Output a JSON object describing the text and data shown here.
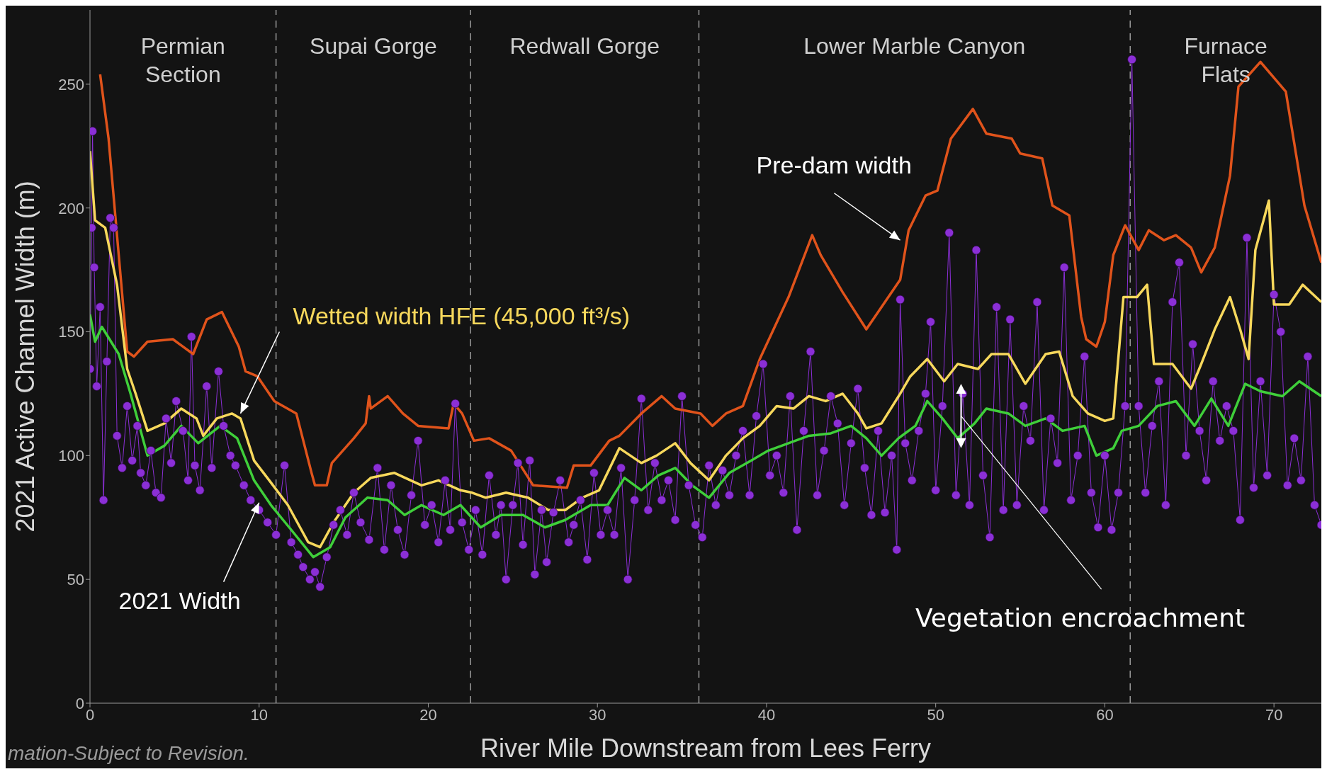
{
  "chart_data": {
    "type": "line",
    "xlabel": "River Mile Downstream from Lees Ferry",
    "ylabel": "2021 Active Channel Width (m)",
    "xlim": [
      0,
      72.8
    ],
    "ylim": [
      0,
      280
    ],
    "xticks": [
      0,
      10,
      20,
      30,
      40,
      50,
      60,
      70
    ],
    "yticks": [
      0,
      50,
      100,
      150,
      200,
      250
    ],
    "grid": false,
    "legend": false,
    "series": [
      {
        "type": "line",
        "marker": "circle",
        "color": "#8b2fd6",
        "x": [
          0,
          0.1,
          0.15,
          0.25,
          0.4,
          0.6,
          0.8,
          1.0,
          1.2,
          1.4,
          1.6,
          1.9,
          2.2,
          2.5,
          2.8,
          3.0,
          3.3,
          3.6,
          3.9,
          4.2,
          4.5,
          4.8,
          5.1,
          5.5,
          5.8,
          6.0,
          6.2,
          6.5,
          6.9,
          7.2,
          7.6,
          7.9,
          8.3,
          8.6,
          9.1,
          9.5,
          10.0,
          10.5,
          11.0,
          11.5,
          11.9,
          12.3,
          12.6,
          13.0,
          13.3,
          13.6,
          14.0,
          14.4,
          14.8,
          15.2,
          15.6,
          16.0,
          16.5,
          17.0,
          17.4,
          17.8,
          18.2,
          18.6,
          19.0,
          19.4,
          19.8,
          20.2,
          20.6,
          21.0,
          21.3,
          21.6,
          22.0,
          22.4,
          22.8,
          23.2,
          23.6,
          24.0,
          24.3,
          24.6,
          25.0,
          25.3,
          25.6,
          26.0,
          26.3,
          26.7,
          27.0,
          27.4,
          27.8,
          28.3,
          28.6,
          29.0,
          29.4,
          29.8,
          30.2,
          30.6,
          31.0,
          31.4,
          31.8,
          32.2,
          32.6,
          33.0,
          33.4,
          33.8,
          34.2,
          34.6,
          35.0,
          35.4,
          35.8,
          36.2,
          36.6,
          37.0,
          37.4,
          37.8,
          38.2,
          38.6,
          39.0,
          39.4,
          39.8,
          40.2,
          40.6,
          41.0,
          41.4,
          41.8,
          42.2,
          42.6,
          43.0,
          43.4,
          43.8,
          44.2,
          44.6,
          45.0,
          45.4,
          45.8,
          46.2,
          46.6,
          47.0,
          47.4,
          47.7,
          47.9,
          48.2,
          48.6,
          49.0,
          49.4,
          49.7,
          50.0,
          50.4,
          50.8,
          51.2,
          51.6,
          52.0,
          52.4,
          52.8,
          53.2,
          53.6,
          54.0,
          54.4,
          54.8,
          55.2,
          55.6,
          56.0,
          56.4,
          56.8,
          57.2,
          57.6,
          58.0,
          58.4,
          58.8,
          59.2,
          59.6,
          60.0,
          60.4,
          60.8,
          61.2,
          61.6,
          62.0,
          62.4,
          62.8,
          63.2,
          63.6,
          64.0,
          64.4,
          64.8,
          65.2,
          65.6,
          66.0,
          66.4,
          66.8,
          67.2,
          67.6,
          68.0,
          68.4,
          68.8,
          69.2,
          69.6,
          70.0,
          70.4,
          70.8,
          71.2,
          71.6,
          72.0,
          72.4,
          72.8
        ],
        "values": [
          135,
          192,
          231,
          176,
          128,
          160,
          82,
          138,
          196,
          192,
          108,
          95,
          120,
          98,
          112,
          93,
          88,
          102,
          85,
          83,
          115,
          97,
          122,
          110,
          90,
          148,
          96,
          86,
          128,
          95,
          134,
          112,
          100,
          96,
          88,
          82,
          78,
          73,
          68,
          96,
          65,
          60,
          55,
          50,
          53,
          47,
          59,
          72,
          78,
          68,
          85,
          73,
          66,
          95,
          62,
          88,
          70,
          60,
          84,
          106,
          72,
          80,
          65,
          90,
          70,
          121,
          73,
          62,
          78,
          60,
          92,
          68,
          80,
          50,
          80,
          97,
          64,
          98,
          52,
          78,
          57,
          77,
          90,
          65,
          72,
          82,
          58,
          93,
          68,
          78,
          68,
          95,
          50,
          82,
          123,
          78,
          97,
          82,
          90,
          74,
          124,
          88,
          72,
          67,
          96,
          80,
          94,
          84,
          100,
          110,
          84,
          116,
          137,
          92,
          100,
          85,
          124,
          70,
          110,
          142,
          84,
          102,
          124,
          113,
          80,
          105,
          127,
          95,
          76,
          110,
          77,
          100,
          62,
          163,
          105,
          90,
          110,
          125,
          154,
          86,
          120,
          190,
          84,
          125,
          80,
          183,
          92,
          67,
          160,
          78,
          155,
          80,
          120,
          106,
          162,
          78,
          115,
          97,
          176,
          82,
          100,
          140,
          85,
          71,
          100,
          70,
          85,
          120,
          260,
          120,
          85,
          112,
          130,
          80,
          162,
          178,
          100,
          145,
          110,
          90,
          130,
          106,
          120,
          110,
          74,
          188,
          87,
          130,
          92,
          165,
          150,
          88,
          107,
          90,
          140,
          80,
          72
        ]
      },
      {
        "name": "Pre-dam width",
        "color": "#e0531b",
        "x": [
          0.6,
          1.1,
          1.7,
          2.2,
          2.6,
          3.4,
          4.9,
          6.1,
          6.9,
          7.8,
          8.8,
          9.2,
          9.9,
          10.9,
          12.2,
          13.1,
          13.3,
          14.0,
          14.3,
          15.6,
          16.3,
          16.5,
          16.6,
          17.6,
          18.5,
          19.4,
          21.2,
          21.5,
          22.0,
          22.7,
          23.6,
          24.9,
          26.2,
          28.2,
          28.6,
          29.6,
          30.7,
          31.3,
          32.6,
          33.8,
          34.6,
          36.1,
          36.8,
          37.6,
          38.6,
          39.6,
          41.3,
          42.7,
          43.2,
          44.5,
          45.9,
          46.8,
          47.9,
          48.4,
          49.4,
          50.1,
          50.9,
          52.2,
          53.0,
          54.5,
          55.0,
          56.3,
          56.9,
          57.9,
          58.6,
          58.9,
          59.5,
          60.0,
          60.5,
          61.2,
          62.0,
          62.6,
          63.5,
          64.2,
          65.1,
          65.7,
          66.5,
          67.4,
          67.9,
          69.2,
          70.7,
          71.8,
          72.8
        ],
        "values": [
          254,
          228,
          181,
          142,
          140,
          146,
          147,
          141,
          155,
          158,
          144,
          134,
          132,
          122,
          117,
          93,
          88,
          88,
          97,
          107,
          113,
          124,
          119,
          124,
          117,
          112,
          111,
          121,
          117,
          106,
          107,
          102,
          88,
          87,
          96,
          96,
          106,
          108,
          117,
          124,
          119,
          117,
          112,
          117,
          120,
          139,
          164,
          189,
          181,
          166,
          151,
          160,
          171,
          191,
          205,
          207,
          228,
          240,
          230,
          228,
          222,
          220,
          201,
          197,
          156,
          147,
          144,
          154,
          181,
          193,
          183,
          191,
          187,
          189,
          184,
          174,
          184,
          213,
          249,
          259,
          247,
          201,
          178
        ]
      },
      {
        "name": "Wetted width HFE (45,000 ft³/s)",
        "color": "#f7d85c",
        "x": [
          0,
          0.3,
          0.9,
          1.6,
          2.2,
          2.7,
          3.4,
          4.4,
          5.4,
          6.3,
          6.7,
          7.5,
          8.4,
          8.9,
          9.7,
          10.6,
          11.7,
          12.9,
          13.6,
          14.4,
          15.6,
          16.6,
          18.0,
          19.6,
          20.6,
          21.9,
          22.6,
          23.4,
          24.6,
          25.9,
          27.1,
          28.1,
          29.1,
          30.1,
          31.3,
          32.6,
          33.5,
          34.6,
          35.5,
          36.6,
          37.6,
          38.6,
          39.6,
          40.6,
          41.6,
          42.5,
          43.5,
          44.5,
          45.4,
          45.9,
          46.8,
          47.9,
          48.5,
          49.5,
          50.5,
          51.3,
          52.5,
          53.3,
          54.3,
          55.3,
          56.5,
          57.3,
          58.1,
          59.0,
          60.0,
          60.5,
          61.1,
          61.9,
          62.5,
          62.9,
          64.0,
          65.1,
          65.7,
          66.5,
          67.4,
          68.0,
          68.5,
          68.9,
          69.7,
          70.0,
          70.9,
          71.7,
          72.8
        ],
        "values": [
          223,
          195,
          192,
          169,
          135,
          125,
          110,
          113,
          119,
          115,
          108,
          115,
          117,
          115,
          98,
          90,
          80,
          65,
          63,
          73,
          85,
          91,
          93,
          88,
          90,
          86,
          85,
          83,
          85,
          83,
          78,
          78,
          83,
          86,
          103,
          97,
          100,
          105,
          97,
          90,
          100,
          107,
          112,
          120,
          119,
          124,
          122,
          125,
          117,
          111,
          113,
          125,
          132,
          139,
          130,
          137,
          135,
          141,
          141,
          129,
          141,
          142,
          124,
          117,
          114,
          115,
          164,
          164,
          169,
          137,
          137,
          127,
          137,
          151,
          164,
          151,
          139,
          183,
          203,
          161,
          161,
          169,
          162
        ]
      },
      {
        "name": "2021 Width",
        "color": "#3fcf3a",
        "x": [
          0,
          0.3,
          0.7,
          1.7,
          2.4,
          3.4,
          4.4,
          5.4,
          6.4,
          7.7,
          8.7,
          9.7,
          10.7,
          11.9,
          13.2,
          14.2,
          15.1,
          16.4,
          17.6,
          18.6,
          19.6,
          20.9,
          21.9,
          23.1,
          24.3,
          25.6,
          26.9,
          28.1,
          29.6,
          30.6,
          31.6,
          32.6,
          33.6,
          34.6,
          35.6,
          36.6,
          37.8,
          39.1,
          40.1,
          41.3,
          42.5,
          43.8,
          45.0,
          45.9,
          46.8,
          47.8,
          48.8,
          49.5,
          50.4,
          51.3,
          52.3,
          53.0,
          54.3,
          55.3,
          56.5,
          57.5,
          58.8,
          59.5,
          60.5,
          61.0,
          62.0,
          63.1,
          64.2,
          65.3,
          66.3,
          67.3,
          68.3,
          69.2,
          70.5,
          71.5,
          72.8
        ],
        "values": [
          157,
          146,
          152,
          141,
          125,
          100,
          104,
          112,
          105,
          112,
          107,
          90,
          80,
          70,
          59,
          63,
          75,
          83,
          82,
          76,
          80,
          76,
          80,
          71,
          76,
          76,
          71,
          74,
          80,
          80,
          91,
          86,
          92,
          95,
          88,
          83,
          93,
          98,
          102,
          105,
          108,
          109,
          112,
          107,
          100,
          107,
          112,
          122,
          115,
          107,
          113,
          119,
          117,
          112,
          115,
          110,
          112,
          100,
          103,
          110,
          112,
          120,
          122,
          112,
          123,
          112,
          129,
          126,
          124,
          130,
          124
        ]
      }
    ],
    "ref_lines": [
      {
        "axis": "x",
        "value": 11,
        "line_style": "dashed",
        "color": "#9a9a9a"
      },
      {
        "axis": "x",
        "value": 22.5,
        "line_style": "dashed",
        "color": "#9a9a9a"
      },
      {
        "axis": "x",
        "value": 36,
        "line_style": "dashed",
        "color": "#9a9a9a"
      },
      {
        "axis": "x",
        "value": 61.5,
        "line_style": "dashed",
        "color": "#9a9a9a"
      }
    ],
    "annotations": [
      "Permian Section",
      "Supai Gorge",
      "Redwall Gorge",
      "Lower Marble Canyon",
      "Furnace Flats",
      {
        "text": "Vegetation encroachment",
        "x": 51.5,
        "y": 116
      },
      "mation-Subject to Revision."
    ]
  }
}
